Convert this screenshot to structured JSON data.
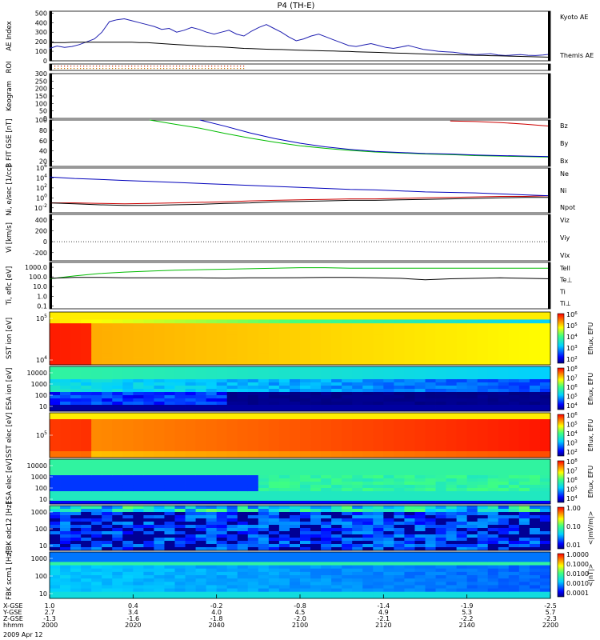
{
  "title": "P4 (TH-E)",
  "chart_data": [
    {
      "name": "ae",
      "type": "line",
      "ylabel": "AE Index",
      "yticks": [
        "0",
        "100",
        "200",
        "300",
        "400",
        "500"
      ],
      "ylim": [
        0,
        520
      ],
      "x": [
        0,
        3,
        6,
        9,
        12,
        15,
        18,
        21,
        24,
        27,
        30,
        33,
        36,
        39,
        42,
        45,
        48,
        51,
        54,
        57,
        60,
        63,
        66,
        69,
        72,
        75,
        78,
        81,
        84,
        87,
        90,
        93,
        96,
        99,
        102,
        105,
        108,
        111,
        114,
        117,
        120,
        123,
        126,
        129,
        132,
        135,
        138,
        141,
        144,
        147,
        150,
        153,
        156,
        159,
        162,
        165,
        168,
        171,
        174,
        177,
        180,
        183,
        186,
        189,
        192,
        195,
        198,
        201
      ],
      "series": [
        {
          "name": "Kyoto AE",
          "color": "#1f1fb0",
          "values": [
            130,
            155,
            140,
            150,
            170,
            200,
            230,
            300,
            410,
            430,
            440,
            420,
            400,
            380,
            360,
            330,
            340,
            300,
            320,
            350,
            330,
            300,
            280,
            300,
            320,
            280,
            260,
            310,
            350,
            380,
            340,
            300,
            250,
            210,
            230,
            260,
            280,
            250,
            220,
            190,
            160,
            150,
            165,
            180,
            160,
            140,
            130,
            145,
            160,
            140,
            120,
            110,
            100,
            95,
            90,
            80,
            70,
            65,
            70,
            75,
            60,
            55,
            60,
            65,
            58,
            55,
            60,
            70
          ]
        },
        {
          "name": "Themis AE",
          "color": "#000000",
          "values": [
            190,
            190,
            190,
            195,
            195,
            195,
            195,
            195,
            195,
            195,
            195,
            195,
            190,
            190,
            185,
            180,
            175,
            170,
            165,
            160,
            155,
            150,
            148,
            145,
            140,
            135,
            130,
            128,
            125,
            122,
            120,
            118,
            115,
            112,
            110,
            108,
            106,
            104,
            102,
            100,
            98,
            95,
            92,
            90,
            88,
            85,
            82,
            80,
            78,
            75,
            72,
            70,
            68,
            66,
            64,
            62,
            60,
            58,
            56,
            54,
            52,
            50,
            48,
            46,
            44,
            42,
            40,
            38
          ]
        }
      ]
    },
    {
      "name": "roi",
      "type": "scatter",
      "ylabel": "ROI",
      "rows": [
        {
          "color": "#cc2200"
        },
        {
          "color": "#cc7700"
        }
      ],
      "xlim": [
        0,
        60
      ]
    },
    {
      "name": "keogram",
      "type": "line",
      "ylabel": "Keogram",
      "yticks": [
        "0",
        "50",
        "100",
        "150",
        "200",
        "250",
        "300"
      ],
      "ylim": [
        0,
        300
      ]
    },
    {
      "name": "bfield",
      "type": "line",
      "ylabel": "B FIT GSE [nT]",
      "yticks": [
        "20",
        "40",
        "60",
        "80",
        "100"
      ],
      "ylim": [
        10,
        100
      ],
      "x": [
        0,
        10,
        20,
        30,
        40,
        50,
        60,
        70,
        80,
        90,
        100,
        110,
        120,
        130,
        140,
        150,
        160,
        170,
        180,
        190,
        200
      ],
      "series": [
        {
          "name": "Bz",
          "color": "#cc0000",
          "values": [
            null,
            null,
            null,
            null,
            null,
            null,
            null,
            null,
            null,
            null,
            null,
            null,
            null,
            null,
            null,
            null,
            98,
            97,
            95,
            92,
            88
          ]
        },
        {
          "name": "By",
          "color": "#00bb00",
          "values": [
            null,
            null,
            null,
            null,
            100,
            92,
            84,
            74,
            65,
            57,
            50,
            45,
            41,
            38,
            36,
            34,
            33,
            31,
            30,
            29,
            28
          ]
        },
        {
          "name": "Bx",
          "color": "#0000bb",
          "values": [
            null,
            null,
            null,
            null,
            null,
            null,
            100,
            88,
            75,
            64,
            55,
            48,
            43,
            39,
            37,
            35,
            34,
            32,
            31,
            30,
            29
          ]
        }
      ]
    },
    {
      "name": "density",
      "type": "line",
      "ylabel": "Ni, e/sec [1/cc]",
      "yticks": [
        "10^-2",
        "10^0",
        "10^2",
        "10^4",
        "10^6"
      ],
      "ylim": [
        -3,
        6
      ],
      "x": [
        0,
        10,
        20,
        30,
        40,
        50,
        60,
        70,
        80,
        90,
        100,
        110,
        120,
        130,
        140,
        150,
        160,
        170,
        180,
        190,
        200
      ],
      "series": [
        {
          "name": "Ne",
          "color": "#cc0000",
          "values": [
            -1,
            -1,
            -1.1,
            -1.2,
            -1.1,
            -1,
            -0.9,
            -0.8,
            -0.6,
            -0.5,
            -0.4,
            -0.3,
            -0.2,
            -0.2,
            -0.1,
            0,
            0.1,
            0.2,
            0.3,
            0.3,
            0.4
          ]
        },
        {
          "name": "Ni",
          "color": "#000000",
          "values": [
            -1,
            -1.2,
            -1.4,
            -1.5,
            -1.5,
            -1.4,
            -1.3,
            -1.1,
            -1,
            -0.8,
            -0.7,
            -0.6,
            -0.5,
            -0.5,
            -0.4,
            -0.3,
            -0.2,
            -0.1,
            0,
            0.1,
            0.1
          ]
        },
        {
          "name": "Npot",
          "color": "#0000bb",
          "values": [
            4.2,
            3.9,
            3.7,
            3.5,
            3.3,
            3.1,
            2.9,
            2.7,
            2.5,
            2.3,
            2.1,
            1.9,
            1.7,
            1.6,
            1.4,
            1.2,
            1.1,
            1,
            0.8,
            0.6,
            0.4
          ]
        }
      ]
    },
    {
      "name": "velocity",
      "type": "line",
      "ylabel": "Vi [km/s]",
      "yticks": [
        "-200",
        "0",
        "200",
        "400"
      ],
      "ylim": [
        -350,
        500
      ],
      "series": [
        {
          "name": "Viz",
          "color": "#cc0000"
        },
        {
          "name": "Viy",
          "color": "#00bb00"
        },
        {
          "name": "Vix",
          "color": "#0000bb"
        }
      ]
    },
    {
      "name": "temperature",
      "type": "line",
      "ylabel": "Ti, eflc [eV]",
      "yticks": [
        "0.1",
        "1.0",
        "10.0",
        "100.0",
        "1000.0"
      ],
      "ylim": [
        -1.3,
        3.5
      ],
      "x": [
        0,
        10,
        20,
        30,
        40,
        50,
        60,
        70,
        80,
        90,
        100,
        110,
        120,
        130,
        140,
        150,
        160,
        170,
        180,
        190,
        200
      ],
      "series": [
        {
          "name": "Tell",
          "color": "#00bb00",
          "values": [
            1.8,
            2.1,
            2.35,
            2.5,
            2.6,
            2.7,
            2.75,
            2.8,
            2.85,
            2.9,
            2.95,
            2.95,
            2.9,
            2.9,
            2.9,
            2.9,
            2.9,
            2.9,
            2.9,
            2.9,
            2.9
          ]
        },
        {
          "name": "Te⊥",
          "color": "#000000",
          "values": [
            1.85,
            1.95,
            1.95,
            1.9,
            1.9,
            1.9,
            1.9,
            1.88,
            1.9,
            1.9,
            1.92,
            1.95,
            1.95,
            1.9,
            1.85,
            1.7,
            1.8,
            1.85,
            1.9,
            1.85,
            1.8
          ]
        },
        {
          "name": "Ti",
          "color": "#00bb00"
        },
        {
          "name": "Ti⊥",
          "color": "#0000bb"
        }
      ]
    },
    {
      "name": "spec1",
      "type": "heatmap",
      "ylabel": "SST ion [eV]",
      "yticks": [
        "10^4",
        "10^5"
      ],
      "cbar": "Eflux, EFU",
      "cbticks": [
        "10^2",
        "10^3",
        "10^4",
        "10^5",
        "10^6"
      ]
    },
    {
      "name": "spec2",
      "type": "heatmap",
      "ylabel": "ESA ion [eV]",
      "yticks": [
        "10",
        "100",
        "1000",
        "10000"
      ],
      "cbar": "Eflux, EFU",
      "cbticks": [
        "10^4",
        "10^5",
        "10^6",
        "10^7",
        "10^8"
      ]
    },
    {
      "name": "spec3",
      "type": "heatmap",
      "ylabel": "SST elec [eV]",
      "yticks": [
        "10^5"
      ],
      "cbar": "Eflux, EFU",
      "cbticks": [
        "10^2",
        "10^3",
        "10^4",
        "10^5",
        "10^6"
      ]
    },
    {
      "name": "spec4",
      "type": "heatmap",
      "ylabel": "ESA elec [eV]",
      "yticks": [
        "10",
        "100",
        "1000",
        "10000"
      ],
      "cbar": "Eflux, EFU",
      "cbticks": [
        "10^4",
        "10^5",
        "10^6",
        "10^7",
        "10^8"
      ]
    },
    {
      "name": "spec5",
      "type": "heatmap",
      "ylabel": "FBK edc12 [Hz]",
      "yticks": [
        "10",
        "100",
        "1000"
      ],
      "cbar": "<|mV/m|>",
      "cbticks": [
        "0.01",
        "0.10",
        "1.00"
      ]
    },
    {
      "name": "spec6",
      "type": "heatmap",
      "ylabel": "FBK scm1 [Hz]",
      "yticks": [
        "10",
        "100",
        "1000"
      ],
      "cbar": "<|nT|>",
      "cbticks": [
        "0.0001",
        "0.0010",
        "0.0100",
        "0.1000",
        "1.0000"
      ]
    }
  ],
  "xaxis": {
    "rows": [
      {
        "label": "X-GSE",
        "values": [
          "1.0",
          "0.4",
          "-0.2",
          "-0.8",
          "-1.4",
          "-1.9",
          "-2.5"
        ]
      },
      {
        "label": "Y-GSE",
        "values": [
          "2.7",
          "3.4",
          "4.0",
          "4.5",
          "4.9",
          "5.3",
          "5.7"
        ]
      },
      {
        "label": "Z-GSE",
        "values": [
          "-1.3",
          "-1.6",
          "-1.8",
          "-2.0",
          "-2.1",
          "-2.2",
          "-2.3"
        ]
      },
      {
        "label": "hhmm",
        "values": [
          "2000",
          "2020",
          "2040",
          "2100",
          "2120",
          "2140",
          "2200"
        ]
      }
    ],
    "date": "2009 Apr 12"
  }
}
